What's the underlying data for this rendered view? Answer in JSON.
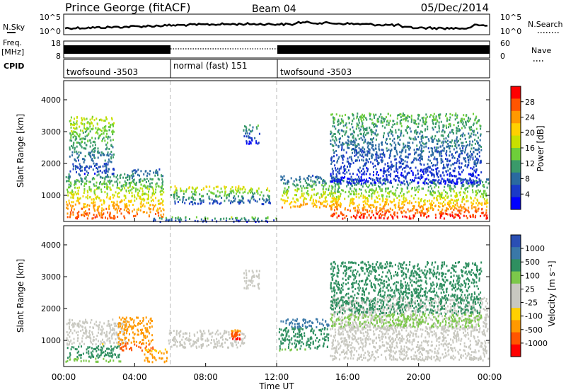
{
  "header": {
    "title": "Prince George (fitACF)",
    "beam": "Beam 04",
    "date": "05/Dec/2014"
  },
  "noise_panel": {
    "left_label": "N.Sky",
    "right_label": "N.Search",
    "left_ticks": [
      "10^5",
      "10^0"
    ],
    "right_ticks": [
      "10^5",
      "10^0"
    ]
  },
  "freq_panel": {
    "left_label_1": "Freq.",
    "left_label_2": "[MHz]",
    "left_ticks": [
      "18",
      "8"
    ],
    "right_label": "Nave",
    "right_ticks": [
      "60",
      "0"
    ]
  },
  "cpid_panel": {
    "label": "CPID",
    "segments": [
      {
        "label": "twofsound -3503",
        "start_hour": 0,
        "end_hour": 6
      },
      {
        "label": "normal (fast) 151",
        "start_hour": 6,
        "end_hour": 12
      },
      {
        "label": "twofsound -3503",
        "start_hour": 12,
        "end_hour": 24
      }
    ]
  },
  "power_panel": {
    "ylabel": "Slant Range [km]",
    "colorbar_label": "Power [dB]",
    "colorbar_ticks": [
      "28",
      "24",
      "20",
      "16",
      "12",
      "8",
      "4"
    ],
    "colors": [
      "#ff0000",
      "#ff5500",
      "#ff9900",
      "#ffd000",
      "#c8e000",
      "#6ecf3a",
      "#3a9a6a",
      "#2a6aa0",
      "#1a3ac8",
      "#0000ff"
    ]
  },
  "velocity_panel": {
    "ylabel": "Slant Range [km]",
    "colorbar_label": "Velocity [m s⁻¹]",
    "colorbar_ticks": [
      "1000",
      "500",
      "100",
      "25",
      "-25",
      "-100",
      "-500",
      "-1000"
    ],
    "colors": [
      "#2a4fb4",
      "#3a78a8",
      "#2f8f60",
      "#7cc84a",
      "#c8c8c0",
      "#c8c8c0",
      "#ffd000",
      "#ff9900",
      "#ff5500",
      "#ff0000"
    ]
  },
  "x_axis": {
    "label": "Time UT",
    "ticks": [
      "00:00",
      "04:00",
      "08:00",
      "12:00",
      "16:00",
      "20:00",
      "00:00"
    ]
  },
  "chart_data": [
    {
      "type": "heatmap",
      "name": "power",
      "x_range_hours": [
        0,
        24
      ],
      "y_range_km": [
        180,
        4600
      ],
      "y_ticks": [
        1000,
        2000,
        3000,
        4000
      ],
      "clusters": [
        {
          "t": [
            0.1,
            3.8
          ],
          "r": [
            300,
            1700
          ],
          "p": [
            28,
            10
          ]
        },
        {
          "t": [
            0.3,
            2.8
          ],
          "r": [
            1700,
            3500
          ],
          "p": [
            6,
            18
          ]
        },
        {
          "t": [
            3.8,
            5.6
          ],
          "r": [
            350,
            1850
          ],
          "p": [
            26,
            8
          ]
        },
        {
          "t": [
            6.0,
            10.2
          ],
          "r": [
            750,
            1320
          ],
          "p": [
            6,
            20
          ]
        },
        {
          "t": [
            5.0,
            12.0
          ],
          "r": [
            200,
            350
          ],
          "p": [
            4,
            16
          ]
        },
        {
          "t": [
            10.3,
            11.6
          ],
          "r": [
            750,
            1250
          ],
          "p": [
            6,
            18
          ]
        },
        {
          "t": [
            10.1,
            11.0
          ],
          "r": [
            2650,
            3250
          ],
          "p": [
            4,
            12
          ]
        },
        {
          "t": [
            12.2,
            15.5
          ],
          "r": [
            650,
            1650
          ],
          "p": [
            24,
            8
          ]
        },
        {
          "t": [
            15.0,
            23.9
          ],
          "r": [
            300,
            1550
          ],
          "p": [
            30,
            8
          ]
        },
        {
          "t": [
            15.0,
            23.5
          ],
          "r": [
            1400,
            3600
          ],
          "p": [
            4,
            14
          ]
        }
      ]
    },
    {
      "type": "heatmap",
      "name": "velocity",
      "x_range_hours": [
        0,
        24
      ],
      "y_range_km": [
        180,
        4600
      ],
      "y_ticks": [
        1000,
        2000,
        3000,
        4000
      ],
      "clusters": [
        {
          "t": [
            0.1,
            3.5
          ],
          "r": [
            900,
            1700
          ],
          "v": [
            -25,
            25
          ]
        },
        {
          "t": [
            0.1,
            3.2
          ],
          "r": [
            350,
            850
          ],
          "v": [
            30,
            150
          ]
        },
        {
          "t": [
            3.0,
            5.0
          ],
          "r": [
            700,
            1750
          ],
          "v": [
            -600,
            -150
          ]
        },
        {
          "t": [
            4.5,
            5.8
          ],
          "r": [
            350,
            750
          ],
          "v": [
            -300,
            -60
          ]
        },
        {
          "t": [
            5.8,
            10.2
          ],
          "r": [
            800,
            1350
          ],
          "v": [
            -20,
            20
          ]
        },
        {
          "t": [
            9.4,
            9.9
          ],
          "r": [
            1050,
            1400
          ],
          "v": [
            -900,
            -300
          ]
        },
        {
          "t": [
            10.1,
            11.0
          ],
          "r": [
            2650,
            3250
          ],
          "v": [
            -20,
            20
          ]
        },
        {
          "t": [
            12.1,
            14.9
          ],
          "r": [
            700,
            1700
          ],
          "v": [
            40,
            400
          ]
        },
        {
          "t": [
            15.0,
            23.9
          ],
          "r": [
            400,
            2400
          ],
          "v": [
            -20,
            20
          ]
        },
        {
          "t": [
            15.0,
            23.5
          ],
          "r": [
            1400,
            3500
          ],
          "v": [
            20,
            200
          ]
        }
      ]
    }
  ]
}
